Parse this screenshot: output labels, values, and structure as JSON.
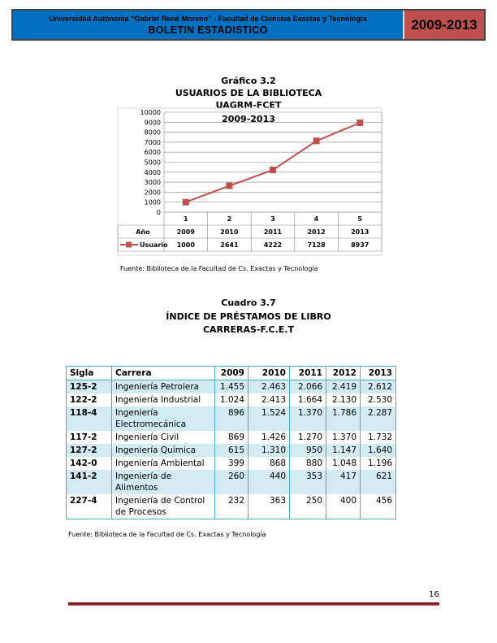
{
  "header": {
    "institution": "Universidad Autónoma “Gabriel René Moreno” - Facultad de Ciencias Exactas y Tecnología",
    "bulletin": "BOLETIN ESTADISTICO",
    "period": "2009-2013",
    "colors": {
      "main": "#0070c0",
      "period": "#c0504d"
    }
  },
  "chart_section": {
    "label": "Gráfico 3.2",
    "title": "USUARIOS DE LA BIBLIOTECA",
    "subtitle": "UAGRM-FCET",
    "period": "2009-2013",
    "source": "Fuente: Biblioteca de la Facultad de Cs.  Exactas y Tecnología"
  },
  "chart_data": {
    "type": "line",
    "x": [
      "1",
      "2",
      "3",
      "4",
      "5"
    ],
    "table_rows": [
      {
        "label": "Año",
        "values": [
          "2009",
          "2010",
          "2011",
          "2012",
          "2013"
        ]
      }
    ],
    "series": [
      {
        "name": "Usuario",
        "values": [
          1000,
          2641,
          4222,
          7128,
          8937
        ],
        "color": "#c0504d",
        "marker": "square"
      }
    ],
    "ylim": [
      0,
      10000
    ],
    "yticks": [
      0,
      1000,
      2000,
      3000,
      4000,
      5000,
      6000,
      7000,
      8000,
      9000,
      10000
    ],
    "grid": true,
    "legend": "data-table"
  },
  "table_section": {
    "label": "Cuadro 3.7",
    "title": "ÍNDICE DE PRÉSTAMOS DE LIBRO",
    "subtitle": "CARRERAS-F.C.E.T",
    "source": "Fuente: Biblioteca de la Facultad de Cs.  Exactas y Tecnología",
    "headers": [
      "Sigla",
      "Carrera",
      "2009",
      "2010",
      "2011",
      "2012",
      "2013"
    ],
    "rows": [
      [
        "125-2",
        "Ingeniería Petrolera",
        "1.455",
        "2.463",
        "2.066",
        "2.419",
        "2.612"
      ],
      [
        "122-2",
        "Ingeniería Industrial",
        "1.024",
        "2.413",
        "1.664",
        "2.130",
        "2.530"
      ],
      [
        "118-4",
        "Ingeniería Electromecánica",
        "896",
        "1.524",
        "1.370",
        "1.786",
        "2.287"
      ],
      [
        "117-2",
        "Ingeniería Civil",
        "869",
        "1.426",
        "1.270",
        "1.370",
        "1.732"
      ],
      [
        "127-2",
        "Ingeniería Química",
        "615",
        "1.310",
        "950",
        "1.147",
        "1.640"
      ],
      [
        "142-0",
        "Ingeniería Ambiental",
        "399",
        "868",
        "880",
        "1.048",
        "1.196"
      ],
      [
        "141-2",
        "Ingeniería de Alimentos",
        "260",
        "440",
        "353",
        "417",
        "621"
      ],
      [
        "227-4",
        "Ingeniería de Control de Procesos",
        "232",
        "363",
        "250",
        "400",
        "456"
      ]
    ]
  },
  "footer": {
    "page_number": "16"
  }
}
